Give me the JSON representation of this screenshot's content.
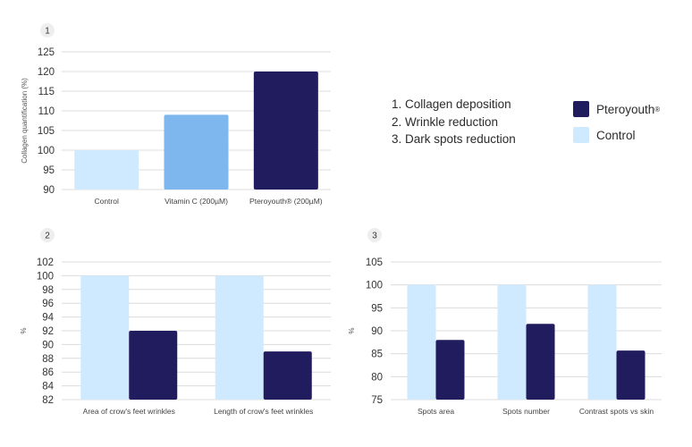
{
  "colors": {
    "control": "#cfeaff",
    "vitamin_c": "#7eb6ee",
    "pteroyouth": "#211c5e"
  },
  "list": {
    "items": [
      "1. Collagen deposition",
      "2. Wrinkle reduction",
      "3. Dark spots reduction"
    ]
  },
  "legend": {
    "pteroyouth": "Pteroyouth",
    "pteroyouth_mark": "®",
    "control": "Control"
  },
  "chart_data": [
    {
      "id": "1",
      "type": "bar",
      "title": "",
      "ylabel": "Collagen quantification (%)",
      "ylim": [
        90,
        125
      ],
      "yticks": [
        90,
        95,
        100,
        105,
        110,
        115,
        120,
        125
      ],
      "categories": [
        "Control",
        "Vitamin C (200µM)",
        "Pteroyouth® (200µM)"
      ],
      "values": [
        100,
        109,
        120
      ],
      "bar_colors": [
        "control",
        "vitamin_c",
        "pteroyouth"
      ]
    },
    {
      "id": "2",
      "type": "bar",
      "title": "",
      "ylabel": "%",
      "ylim": [
        82,
        102
      ],
      "yticks": [
        82,
        84,
        86,
        88,
        90,
        92,
        94,
        96,
        98,
        100,
        102
      ],
      "categories": [
        "Area of crow's feet wrinkles",
        "Length of crow's feet wrinkles"
      ],
      "series": [
        {
          "name": "Control",
          "values": [
            100,
            100
          ]
        },
        {
          "name": "Pteroyouth",
          "values": [
            92,
            89
          ]
        }
      ]
    },
    {
      "id": "3",
      "type": "bar",
      "title": "",
      "ylabel": "%",
      "ylim": [
        75,
        105
      ],
      "yticks": [
        75,
        80,
        85,
        90,
        95,
        100,
        105
      ],
      "categories": [
        "Spots area",
        "Spots number",
        "Contrast spots vs skin"
      ],
      "series": [
        {
          "name": "Control",
          "values": [
            100,
            100,
            100
          ]
        },
        {
          "name": "Pteroyouth",
          "values": [
            88,
            91.5,
            85.7
          ]
        }
      ]
    }
  ]
}
